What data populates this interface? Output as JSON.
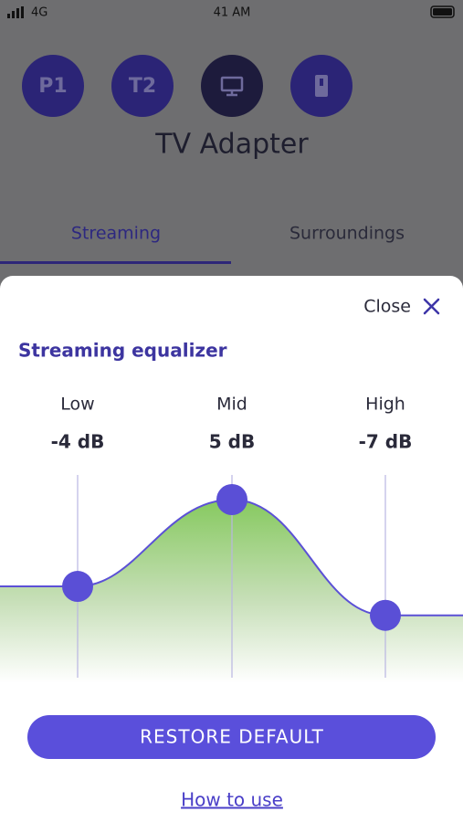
{
  "status_bar": {
    "network": "4G",
    "time": "41 AM"
  },
  "programs": [
    "P1",
    "T2"
  ],
  "device_title": "TV Adapter",
  "tabs": [
    "Streaming",
    "Surroundings"
  ],
  "sheet": {
    "close": "Close",
    "title": "Streaming equalizer",
    "equalizer": {
      "bands": [
        "Low",
        "Mid",
        "High"
      ],
      "values": [
        -4,
        5,
        -7
      ],
      "value_labels": [
        "-4 dB",
        "5 dB",
        "-7 dB"
      ]
    },
    "button": "RESTORE DEFAULT",
    "link": "How to use"
  }
}
